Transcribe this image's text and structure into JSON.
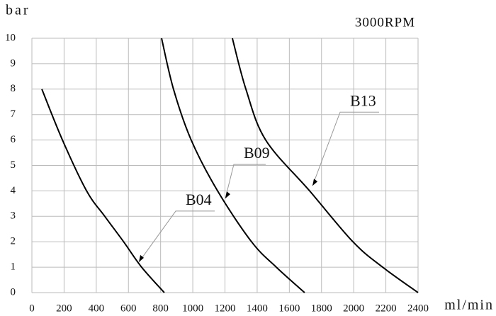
{
  "chart_data": {
    "type": "line",
    "subtitle": "3000RPM",
    "y_label": "bar",
    "x_label": "ml/min",
    "xlim": [
      0,
      2400
    ],
    "xticks": [
      0,
      200,
      400,
      600,
      800,
      1000,
      1200,
      1400,
      1600,
      1800,
      2000,
      2200,
      2400
    ],
    "ylim": [
      0,
      10
    ],
    "yticks": [
      0,
      1,
      2,
      3,
      4,
      5,
      6,
      7,
      8,
      9,
      10
    ],
    "grid": true,
    "series": [
      {
        "name": "B04",
        "color": "#000000",
        "x": [
          62,
          190,
          340,
          453,
          570,
          682,
          823
        ],
        "values": [
          8,
          6,
          4,
          3,
          2,
          1,
          0
        ]
      },
      {
        "name": "B09",
        "color": "#000000",
        "x": [
          806,
          880,
          990,
          1154,
          1365,
          1519,
          1695
        ],
        "values": [
          10,
          8,
          6,
          4,
          2,
          1,
          0
        ]
      },
      {
        "name": "B13",
        "color": "#000000",
        "x": [
          1246,
          1330,
          1453,
          1726,
          1995,
          2180,
          2400
        ],
        "values": [
          10,
          8,
          6,
          4,
          2,
          1,
          0
        ]
      }
    ],
    "annotations": [
      {
        "text": "B04",
        "x": 665,
        "y": 1.2
      },
      {
        "text": "B09",
        "x": 1202,
        "y": 3.7
      },
      {
        "text": "B13",
        "x": 1744,
        "y": 4.2
      }
    ]
  }
}
